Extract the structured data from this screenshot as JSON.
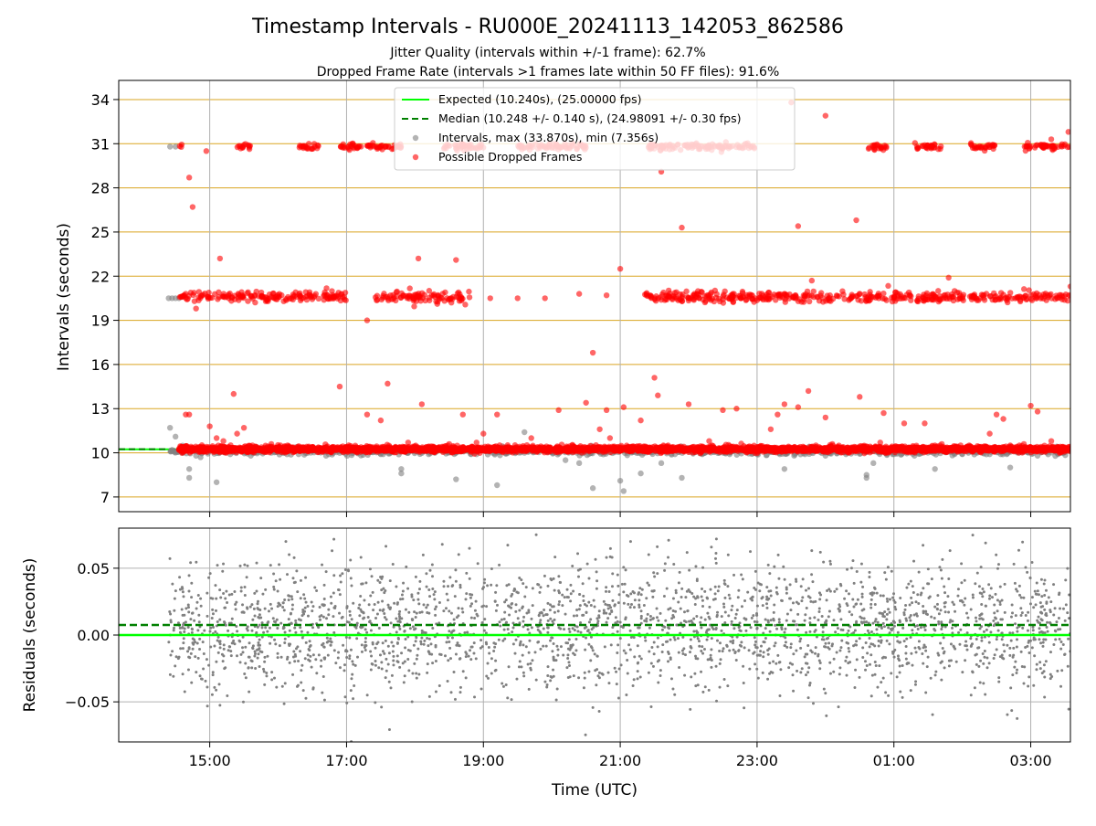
{
  "figure": {
    "title": "Timestamp Intervals - RU000E_20241113_142053_862586",
    "subtitle_1": "Jitter Quality (intervals within +/-1 frame): 62.7%",
    "subtitle_2": "Dropped Frame Rate (intervals >1 frames late within 50 FF files): 91.6%",
    "colors": {
      "expected": "#00ff00",
      "median": "#008000",
      "intervals": "#808080",
      "dropped": "#ff0000",
      "hgrid_top": "#daa520",
      "grid": "#b0b0b0"
    }
  },
  "chart_data": [
    {
      "type": "scatter",
      "ylabel": "Intervals (seconds)",
      "ylim": [
        6,
        35.3
      ],
      "x_range_hours": [
        13.67,
        27.58
      ],
      "yticks": [
        "7",
        "10",
        "13",
        "16",
        "19",
        "22",
        "25",
        "28",
        "31",
        "34"
      ],
      "ytick_values": [
        7,
        10,
        13,
        16,
        19,
        22,
        25,
        28,
        31,
        34
      ],
      "grid": true,
      "legend_placement": "top-center",
      "legend": [
        "Expected (10.240s), (25.00000 fps)",
        "Median (10.248 +/- 0.140 s), (24.98091 +/- 0.30 fps)",
        "Intervals, max (33.870s), min (7.356s)",
        "Possible Dropped Frames"
      ],
      "series": [
        {
          "name": "Expected (10.240s), (25.00000 fps)",
          "kind": "hline",
          "value": 10.24
        },
        {
          "name": "Median (10.248 +/- 0.140 s), (24.98091 +/- 0.30 fps)",
          "kind": "hline",
          "value": 10.248
        },
        {
          "name": "Intervals, max (33.870s), min (7.356s)",
          "kind": "scatter",
          "points": [
            [
              14.4,
              20.5
            ],
            [
              14.45,
              20.5
            ],
            [
              14.5,
              20.5
            ],
            [
              14.55,
              20.5
            ],
            [
              14.6,
              20.6
            ],
            [
              14.42,
              30.8
            ],
            [
              14.5,
              30.8
            ],
            [
              14.42,
              11.7
            ],
            [
              14.45,
              10.2
            ],
            [
              14.5,
              11.1
            ],
            [
              14.6,
              10.1
            ],
            [
              14.7,
              8.9
            ],
            [
              14.7,
              8.3
            ],
            [
              14.8,
              9.8
            ],
            [
              15.1,
              8.0
            ],
            [
              15.3,
              9.9
            ],
            [
              15.6,
              9.8
            ],
            [
              15.9,
              10.0
            ],
            [
              16.3,
              9.9
            ],
            [
              16.7,
              9.8
            ],
            [
              17.1,
              10.0
            ],
            [
              17.5,
              9.9
            ],
            [
              17.8,
              8.9
            ],
            [
              17.8,
              8.6
            ],
            [
              18.2,
              9.9
            ],
            [
              18.6,
              8.2
            ],
            [
              18.9,
              9.9
            ],
            [
              19.2,
              7.8
            ],
            [
              19.6,
              10.0
            ],
            [
              19.6,
              11.4
            ],
            [
              19.9,
              10.1
            ],
            [
              20.2,
              10.3
            ],
            [
              20.2,
              9.5
            ],
            [
              20.4,
              9.3
            ],
            [
              20.6,
              7.6
            ],
            [
              20.8,
              10.1
            ],
            [
              21.0,
              8.1
            ],
            [
              21.05,
              7.4
            ],
            [
              21.3,
              8.6
            ],
            [
              21.6,
              9.3
            ],
            [
              21.8,
              9.9
            ],
            [
              21.9,
              8.3
            ],
            [
              22.2,
              9.9
            ],
            [
              22.6,
              9.9
            ],
            [
              23.0,
              9.9
            ],
            [
              23.4,
              8.9
            ],
            [
              23.7,
              9.9
            ],
            [
              24.0,
              9.8
            ],
            [
              24.3,
              9.9
            ],
            [
              24.6,
              8.5
            ],
            [
              24.6,
              8.3
            ],
            [
              24.7,
              9.3
            ],
            [
              24.9,
              9.9
            ],
            [
              25.3,
              9.8
            ],
            [
              25.6,
              8.9
            ],
            [
              26.0,
              9.9
            ],
            [
              26.4,
              9.9
            ],
            [
              26.7,
              9.0
            ],
            [
              27.1,
              9.8
            ],
            [
              27.4,
              9.9
            ]
          ]
        },
        {
          "name": "Possible Dropped Frames",
          "kind": "scatter",
          "bands": [
            {
              "y": 30.8,
              "jitter": 0.1,
              "segments": [
                [
                  14.55,
                  14.6
                ],
                [
                  15.4,
                  15.6
                ],
                [
                  16.3,
                  16.6
                ],
                [
                  16.9,
                  17.8
                ],
                [
                  18.4,
                  19.0
                ],
                [
                  19.5,
                  20.5
                ],
                [
                  21.4,
                  23.0
                ],
                [
                  24.6,
                  24.9
                ],
                [
                  25.3,
                  25.7
                ],
                [
                  26.1,
                  26.5
                ],
                [
                  26.9,
                  27.58
                ]
              ]
            },
            {
              "y": 20.6,
              "jitter": 0.18,
              "segments": [
                [
                  14.55,
                  17.0
                ],
                [
                  17.4,
                  18.8
                ],
                [
                  21.35,
                  27.58
                ]
              ]
            },
            {
              "y": 10.25,
              "jitter": 0.1,
              "segments": [
                [
                  14.55,
                  27.58
                ]
              ]
            }
          ],
          "points": [
            [
              14.6,
              10.1
            ],
            [
              14.65,
              12.6
            ],
            [
              14.7,
              12.6
            ],
            [
              14.8,
              19.8
            ],
            [
              14.7,
              28.7
            ],
            [
              14.75,
              26.7
            ],
            [
              14.95,
              30.5
            ],
            [
              15.0,
              11.8
            ],
            [
              15.1,
              11.0
            ],
            [
              15.15,
              23.2
            ],
            [
              15.2,
              10.8
            ],
            [
              15.4,
              11.3
            ],
            [
              15.35,
              14.0
            ],
            [
              15.5,
              11.7
            ],
            [
              15.9,
              10.6
            ],
            [
              16.1,
              10.4
            ],
            [
              16.5,
              10.4
            ],
            [
              16.7,
              20.6
            ],
            [
              16.8,
              10.4
            ],
            [
              16.9,
              14.5
            ],
            [
              17.3,
              19.0
            ],
            [
              17.3,
              12.6
            ],
            [
              17.5,
              12.2
            ],
            [
              17.6,
              14.7
            ],
            [
              17.9,
              10.7
            ],
            [
              18.05,
              23.2
            ],
            [
              18.1,
              13.3
            ],
            [
              18.2,
              10.4
            ],
            [
              18.5,
              10.6
            ],
            [
              18.6,
              23.1
            ],
            [
              18.7,
              12.6
            ],
            [
              18.9,
              10.7
            ],
            [
              19.0,
              11.3
            ],
            [
              19.1,
              20.5
            ],
            [
              19.2,
              12.6
            ],
            [
              19.5,
              20.5
            ],
            [
              19.7,
              11.0
            ],
            [
              19.9,
              20.5
            ],
            [
              20.1,
              12.9
            ],
            [
              20.3,
              10.5
            ],
            [
              20.4,
              20.8
            ],
            [
              20.5,
              13.4
            ],
            [
              20.6,
              16.8
            ],
            [
              20.7,
              11.6
            ],
            [
              20.8,
              20.7
            ],
            [
              20.8,
              12.9
            ],
            [
              20.85,
              11.0
            ],
            [
              21.0,
              22.5
            ],
            [
              21.05,
              13.1
            ],
            [
              21.3,
              12.2
            ],
            [
              21.5,
              15.1
            ],
            [
              21.55,
              13.9
            ],
            [
              21.6,
              29.1
            ],
            [
              21.7,
              10.5
            ],
            [
              21.85,
              10.4
            ],
            [
              21.9,
              25.3
            ],
            [
              22.0,
              13.3
            ],
            [
              22.3,
              10.8
            ],
            [
              22.5,
              12.9
            ],
            [
              22.7,
              13.0
            ],
            [
              23.0,
              10.4
            ],
            [
              23.2,
              11.6
            ],
            [
              23.3,
              12.6
            ],
            [
              23.4,
              13.3
            ],
            [
              23.5,
              33.8
            ],
            [
              23.6,
              25.4
            ],
            [
              23.6,
              13.1
            ],
            [
              23.75,
              14.2
            ],
            [
              23.8,
              21.7
            ],
            [
              24.0,
              32.9
            ],
            [
              24.0,
              12.4
            ],
            [
              24.1,
              10.6
            ],
            [
              24.45,
              25.8
            ],
            [
              24.5,
              13.8
            ],
            [
              24.8,
              10.7
            ],
            [
              24.85,
              12.7
            ],
            [
              25.15,
              12.0
            ],
            [
              25.45,
              12.0
            ],
            [
              25.55,
              20.4
            ],
            [
              25.6,
              10.5
            ],
            [
              25.7,
              10.6
            ],
            [
              25.8,
              21.9
            ],
            [
              26.1,
              10.5
            ],
            [
              26.4,
              11.3
            ],
            [
              26.5,
              12.6
            ],
            [
              26.6,
              12.3
            ],
            [
              26.7,
              10.5
            ],
            [
              26.9,
              10.6
            ],
            [
              27.0,
              13.2
            ],
            [
              27.1,
              12.8
            ],
            [
              27.3,
              31.3
            ],
            [
              27.3,
              10.8
            ],
            [
              27.55,
              31.8
            ],
            [
              27.58,
              21.3
            ]
          ]
        }
      ]
    },
    {
      "type": "scatter",
      "ylabel": "Residuals (seconds)",
      "xlabel": "Time (UTC)",
      "ylim": [
        -0.08,
        0.08
      ],
      "x_range_hours": [
        13.67,
        27.58
      ],
      "yticks": [
        "−0.05",
        "0.00",
        "0.05"
      ],
      "ytick_values": [
        -0.05,
        0.0,
        0.05
      ],
      "xticks": [
        "15:00",
        "17:00",
        "19:00",
        "21:00",
        "23:00",
        "01:00",
        "03:00"
      ],
      "xtick_values": [
        15,
        17,
        19,
        21,
        23,
        25,
        27
      ],
      "grid": true,
      "series": [
        {
          "name": "Expected (10.240s), (25.00000 fps)",
          "kind": "hline",
          "value": 0.0
        },
        {
          "name": "Median (10.248 +/- 0.140 s), (24.98091 +/- 0.30 fps)",
          "kind": "hline",
          "value": 0.0075
        },
        {
          "name": "Residuals",
          "kind": "scatter",
          "x_span": [
            14.4,
            27.58
          ],
          "count": 2600,
          "sd": 0.024,
          "center": 0.005
        }
      ]
    }
  ]
}
